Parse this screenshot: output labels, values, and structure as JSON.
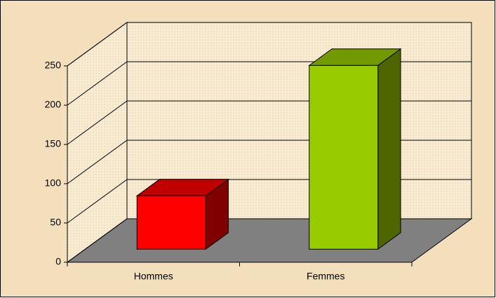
{
  "chart_data": {
    "type": "bar3d",
    "categories": [
      "Hommes",
      "Femmes"
    ],
    "values": [
      68,
      234
    ],
    "colors": [
      "#ff0000",
      "#99cc00"
    ],
    "side_colors": [
      "#800000",
      "#4d6600"
    ],
    "top_colors": [
      "#c00000",
      "#739900"
    ],
    "ylim": [
      0,
      250
    ],
    "yticks": [
      0,
      50,
      100,
      150,
      200,
      250
    ],
    "grid": true
  }
}
